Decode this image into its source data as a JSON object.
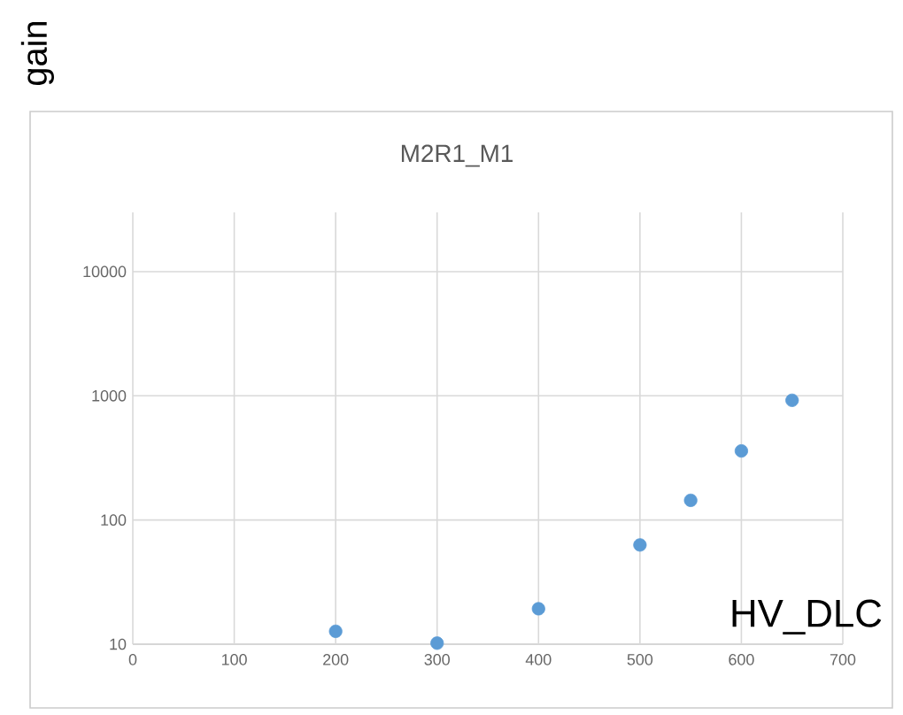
{
  "chart_data": {
    "type": "scatter",
    "title": "M2R1_M1",
    "xlabel": "HV_DLC",
    "ylabel": "gain",
    "x": [
      200,
      300,
      400,
      500,
      550,
      600,
      650
    ],
    "series": [
      {
        "color": "#5b9bd5",
        "values": [
          12.7,
          10.2,
          19.3,
          63,
          144,
          360,
          920
        ]
      }
    ],
    "xlim": [
      0,
      700
    ],
    "xticks": [
      0,
      100,
      200,
      300,
      400,
      500,
      600,
      700
    ],
    "ylim": [
      10,
      30000
    ],
    "yticks": [
      10,
      100,
      1000,
      10000
    ],
    "log": "y",
    "grid": true,
    "marker": "circle"
  }
}
